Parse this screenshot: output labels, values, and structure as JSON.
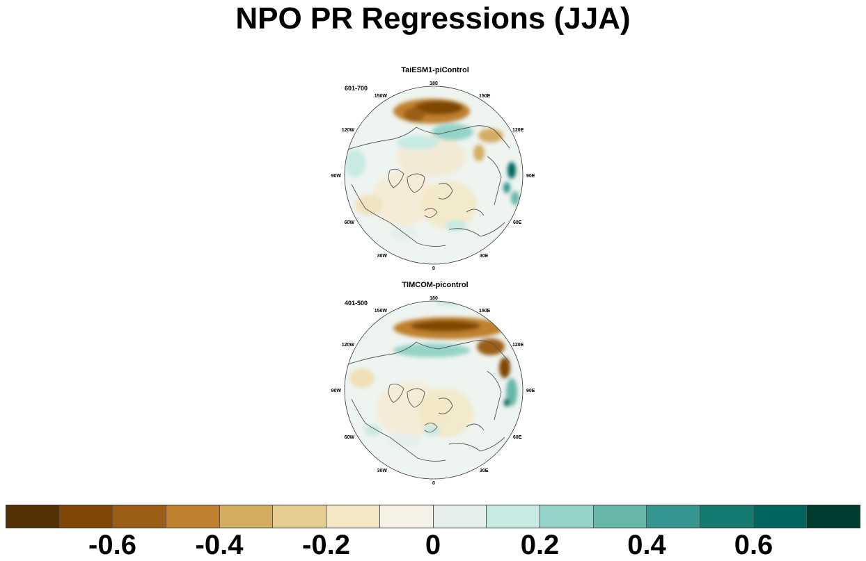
{
  "title": "NPO PR Regressions (JJA)",
  "panels": [
    {
      "title": "TaiESM1-piControl",
      "years": "601-700"
    },
    {
      "title": "TIMCOM-picontrol",
      "years": "401-500"
    }
  ],
  "lon_labels": {
    "n180": "180",
    "e150": "150E",
    "e120": "120E",
    "e90": "90E",
    "e60": "60E",
    "e30": "30E",
    "zero": "0",
    "w30": "30W",
    "w60": "60W",
    "w90": "90W",
    "w120": "120W",
    "w150": "150W"
  },
  "colorbar": {
    "colors": [
      "#543005",
      "#7f4606",
      "#9a5e17",
      "#bf812d",
      "#d4ad62",
      "#e6cd8f",
      "#f4e7c3",
      "#f5f1e6",
      "#e4efec",
      "#c7eae2",
      "#94d4c8",
      "#68b7ab",
      "#35978f",
      "#157a70",
      "#01665e",
      "#003c30"
    ],
    "labels": [
      "-0.6",
      "-0.4",
      "-0.2",
      "0",
      "0.2",
      "0.4",
      "0.6"
    ]
  }
}
